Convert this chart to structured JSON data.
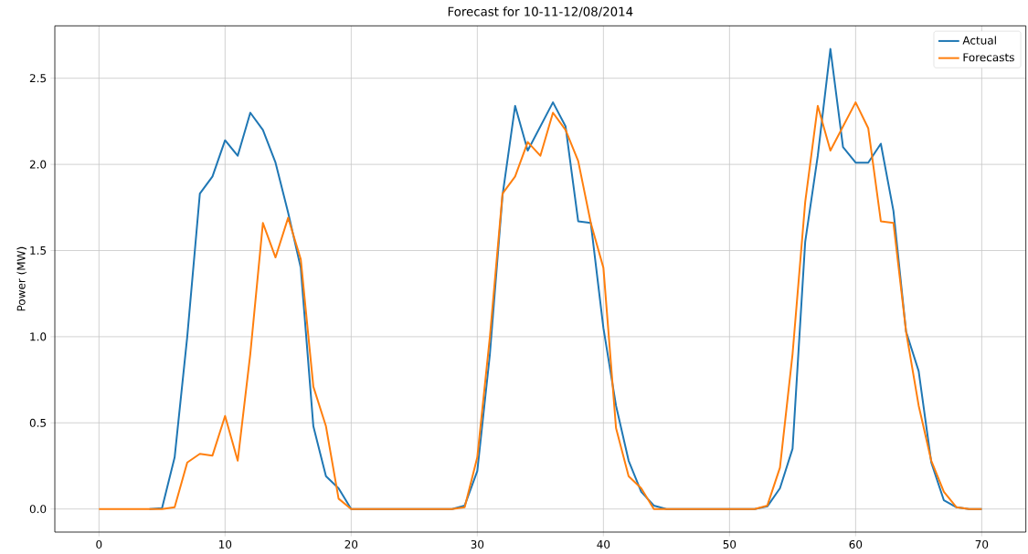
{
  "chart_data": {
    "type": "line",
    "title": "Forecast for 10-11-12/08/2014",
    "ylabel": "Power (MW)",
    "x": [
      0,
      1,
      2,
      3,
      4,
      5,
      6,
      7,
      8,
      9,
      10,
      11,
      12,
      13,
      14,
      15,
      16,
      17,
      18,
      19,
      20,
      21,
      22,
      23,
      24,
      25,
      26,
      27,
      28,
      29,
      30,
      31,
      32,
      33,
      34,
      35,
      36,
      37,
      38,
      39,
      40,
      41,
      42,
      43,
      44,
      45,
      46,
      47,
      48,
      49,
      50,
      51,
      52,
      53,
      54,
      55,
      56,
      57,
      58,
      59,
      60,
      61,
      62,
      63,
      64,
      65,
      66,
      67,
      68,
      69,
      70
    ],
    "series": [
      {
        "name": "Actual",
        "color": "#1f77b4",
        "values": [
          null,
          null,
          null,
          null,
          0,
          0.005,
          0.3,
          1.0,
          1.83,
          1.93,
          2.14,
          2.05,
          2.3,
          2.2,
          2.01,
          1.72,
          1.4,
          0.48,
          0.19,
          0.12,
          0,
          0,
          0,
          0,
          0,
          0,
          0,
          0,
          0,
          0.02,
          0.22,
          0.9,
          1.82,
          2.34,
          2.08,
          2.22,
          2.36,
          2.22,
          1.67,
          1.66,
          1.05,
          0.6,
          0.28,
          0.1,
          0.02,
          0,
          0,
          0,
          0,
          0,
          0,
          0,
          0,
          0.015,
          0.12,
          0.35,
          1.55,
          2.05,
          2.67,
          2.1,
          2.01,
          2.01,
          2.12,
          1.73,
          1.03,
          0.8,
          0.27,
          0.05,
          0.01,
          0,
          0
        ]
      },
      {
        "name": "Forecasts",
        "color": "#ff7f0e",
        "values": [
          0,
          0,
          0,
          0,
          0,
          0,
          0.01,
          0.27,
          0.32,
          0.31,
          0.54,
          0.28,
          0.9,
          1.66,
          1.46,
          1.69,
          1.45,
          0.71,
          0.48,
          0.06,
          0,
          0,
          0,
          0,
          0,
          0,
          0,
          0,
          0,
          0.01,
          0.3,
          1.0,
          1.83,
          1.93,
          2.13,
          2.05,
          2.3,
          2.2,
          2.02,
          1.66,
          1.4,
          0.47,
          0.19,
          0.12,
          0,
          0,
          0,
          0,
          0,
          0,
          0,
          0,
          0,
          0.02,
          0.24,
          0.9,
          1.78,
          2.34,
          2.08,
          2.22,
          2.36,
          2.21,
          1.67,
          1.66,
          1.03,
          0.6,
          0.28,
          0.1,
          0.01,
          0,
          0
        ]
      }
    ],
    "xlim": [
      -3.5,
      73.5
    ],
    "ylim": [
      -0.134,
      2.804
    ],
    "xticks": [
      0,
      10,
      20,
      30,
      40,
      50,
      60,
      70
    ],
    "yticks": [
      {
        "value": 0,
        "label": "0.0"
      },
      0.5,
      {
        "value": 1,
        "label": "1.0"
      },
      1.5,
      {
        "value": 2,
        "label": "2.0"
      },
      2.5
    ],
    "grid": true,
    "legend": "top right",
    "marker": "none",
    "line_style": "solid"
  }
}
